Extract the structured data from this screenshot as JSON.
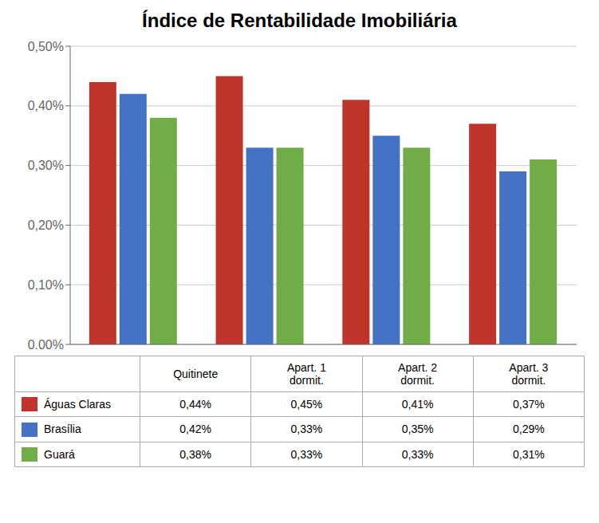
{
  "chart_data": {
    "type": "bar",
    "title": "Índice de Rentabilidade Imobiliária",
    "categories": [
      "Quitinete",
      "Apart. 1\ndormit.",
      "Apart. 2\ndormit.",
      "Apart. 3\ndormit."
    ],
    "series": [
      {
        "name": "Águas Claras",
        "color": "#C0342C",
        "values": [
          0.0044,
          0.0045,
          0.0041,
          0.0037
        ],
        "value_labels": [
          "0,44%",
          "0,45%",
          "0,41%",
          "0,37%"
        ]
      },
      {
        "name": "Brasília",
        "color": "#4472C4",
        "values": [
          0.0042,
          0.0033,
          0.0035,
          0.0029
        ],
        "value_labels": [
          "0,42%",
          "0,33%",
          "0,35%",
          "0,29%"
        ]
      },
      {
        "name": "Guará",
        "color": "#70AD47",
        "values": [
          0.0038,
          0.0033,
          0.0033,
          0.0031
        ],
        "value_labels": [
          "0,38%",
          "0,33%",
          "0,33%",
          "0,31%"
        ]
      }
    ],
    "ylim": [
      0,
      0.005
    ],
    "yticks": [
      {
        "value": 0.0,
        "label": "0,00%"
      },
      {
        "value": 0.001,
        "label": "0,10%"
      },
      {
        "value": 0.002,
        "label": "0,20%"
      },
      {
        "value": 0.003,
        "label": "0,30%"
      },
      {
        "value": 0.004,
        "label": "0,40%"
      },
      {
        "value": 0.005,
        "label": "0,50%"
      }
    ],
    "grid": true,
    "tick_labels": "y"
  }
}
